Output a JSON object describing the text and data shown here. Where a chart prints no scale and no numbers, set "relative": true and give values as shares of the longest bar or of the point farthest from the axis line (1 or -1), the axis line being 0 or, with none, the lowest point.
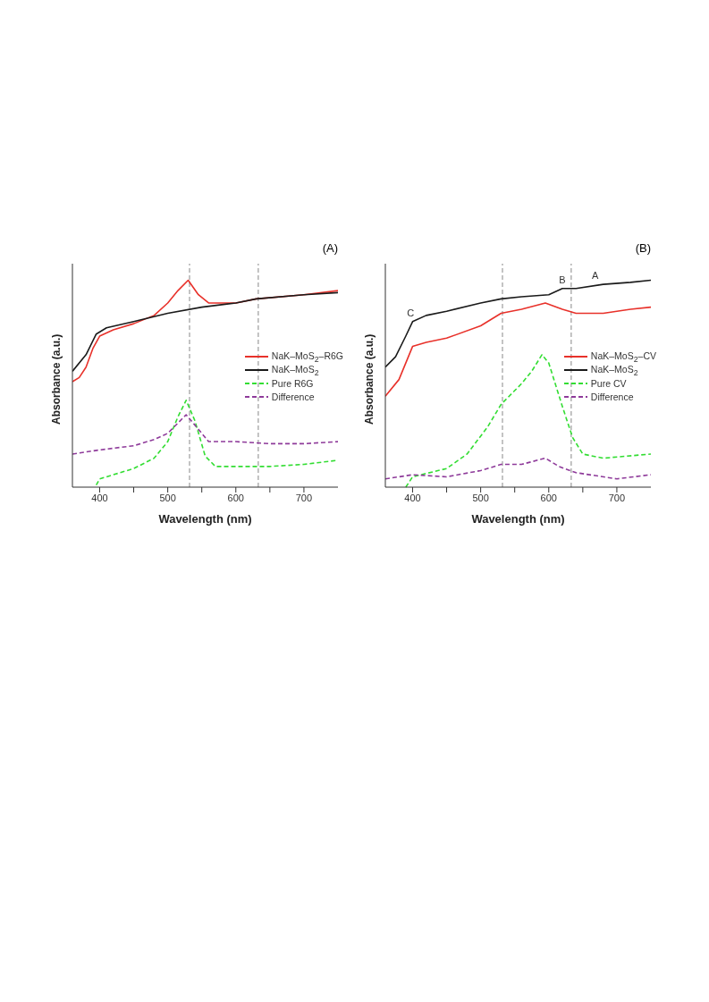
{
  "chart_data": [
    {
      "type": "line",
      "title": "(A)",
      "xlabel": "Wavelength (nm)",
      "ylabel": "Absorbance (a.u.)",
      "relative": true,
      "xlim": [
        360,
        750
      ],
      "xticks": [
        400,
        {
          "value": 450,
          "label": null
        },
        500,
        {
          "value": 550,
          "label": null
        },
        600,
        {
          "value": 650,
          "label": null
        },
        700
      ],
      "legend": "right",
      "series": [
        {
          "name": "NaK–MoS$_{2}$–R6G",
          "color": "#e8312a",
          "line_style": "solid",
          "x": [
            360,
            370,
            380,
            390,
            400,
            420,
            450,
            480,
            500,
            515,
            530,
            545,
            560,
            600,
            630,
            700,
            750
          ],
          "values": [
            0.51,
            0.53,
            0.58,
            0.67,
            0.73,
            0.76,
            0.79,
            0.83,
            0.89,
            0.95,
            1.0,
            0.93,
            0.89,
            0.89,
            0.91,
            0.93,
            0.95
          ]
        },
        {
          "name": "NaK–MoS$_{2}$",
          "color": "#1a1a1a",
          "line_style": "solid",
          "x": [
            360,
            380,
            395,
            410,
            450,
            500,
            550,
            600,
            630,
            700,
            750
          ],
          "values": [
            0.56,
            0.64,
            0.74,
            0.77,
            0.8,
            0.84,
            0.87,
            0.89,
            0.91,
            0.93,
            0.94
          ]
        },
        {
          "name": "Pure R6G",
          "color": "#33dd33",
          "line_style": "dashed",
          "x": [
            395,
            400,
            450,
            480,
            500,
            515,
            527,
            540,
            555,
            570,
            600,
            650,
            700,
            750
          ],
          "values": [
            0.01,
            0.04,
            0.09,
            0.14,
            0.22,
            0.34,
            0.42,
            0.32,
            0.15,
            0.1,
            0.1,
            0.1,
            0.11,
            0.13
          ]
        },
        {
          "name": "Difference",
          "color": "#8e3a9a",
          "line_style": "dashed",
          "x": [
            360,
            400,
            450,
            480,
            500,
            527,
            545,
            560,
            600,
            650,
            700,
            750
          ],
          "values": [
            0.16,
            0.18,
            0.2,
            0.23,
            0.26,
            0.35,
            0.28,
            0.22,
            0.22,
            0.21,
            0.21,
            0.22
          ]
        }
      ],
      "ref_lines": [
        {
          "axis": "x",
          "value": 532,
          "color": "#888888",
          "line_style": "dashed"
        },
        {
          "axis": "x",
          "value": 633,
          "color": "#888888",
          "line_style": "dashed"
        }
      ]
    },
    {
      "type": "line",
      "title": "(B)",
      "xlabel": "Wavelength (nm)",
      "ylabel": "Absorbance (a.u.)",
      "relative": true,
      "xlim": [
        360,
        750
      ],
      "xticks": [
        400,
        {
          "value": 450,
          "label": null
        },
        500,
        {
          "value": 550,
          "label": null
        },
        600,
        {
          "value": 650,
          "label": null
        },
        700
      ],
      "legend": "right",
      "series": [
        {
          "name": "NaK–MoS$_{2}$–CV",
          "color": "#e8312a",
          "line_style": "solid",
          "x": [
            360,
            380,
            400,
            420,
            450,
            500,
            530,
            560,
            595,
            620,
            640,
            680,
            720,
            750
          ],
          "values": [
            0.44,
            0.52,
            0.68,
            0.7,
            0.72,
            0.78,
            0.84,
            0.86,
            0.89,
            0.86,
            0.84,
            0.84,
            0.86,
            0.87
          ]
        },
        {
          "name": "NaK–MoS$_{2}$",
          "color": "#1a1a1a",
          "line_style": "solid",
          "x": [
            360,
            375,
            390,
            400,
            420,
            450,
            500,
            530,
            560,
            600,
            620,
            640,
            680,
            720,
            750
          ],
          "values": [
            0.58,
            0.63,
            0.73,
            0.8,
            0.83,
            0.85,
            0.89,
            0.91,
            0.92,
            0.93,
            0.96,
            0.96,
            0.98,
            0.99,
            1.0
          ]
        },
        {
          "name": "Pure CV",
          "color": "#33dd33",
          "line_style": "dashed",
          "x": [
            390,
            400,
            450,
            480,
            510,
            530,
            560,
            575,
            590,
            600,
            620,
            635,
            650,
            680,
            750
          ],
          "values": [
            0,
            0.05,
            0.09,
            0.16,
            0.29,
            0.4,
            0.5,
            0.56,
            0.64,
            0.6,
            0.39,
            0.24,
            0.16,
            0.14,
            0.16
          ]
        },
        {
          "name": "Difference",
          "color": "#8e3a9a",
          "line_style": "dashed",
          "x": [
            360,
            400,
            450,
            500,
            530,
            560,
            595,
            615,
            640,
            700,
            750
          ],
          "values": [
            0.04,
            0.06,
            0.05,
            0.08,
            0.11,
            0.11,
            0.14,
            0.1,
            0.07,
            0.04,
            0.06
          ]
        }
      ],
      "ref_lines": [
        {
          "axis": "x",
          "value": 532,
          "color": "#888888",
          "line_style": "dashed"
        },
        {
          "axis": "x",
          "value": 633,
          "color": "#888888",
          "line_style": "dashed"
        }
      ],
      "annotations": [
        {
          "text": "C",
          "x": 397,
          "y": 0.8
        },
        {
          "text": "B",
          "x": 620,
          "y": 0.96
        },
        {
          "text": "A",
          "x": 668,
          "y": 0.98
        }
      ]
    }
  ]
}
